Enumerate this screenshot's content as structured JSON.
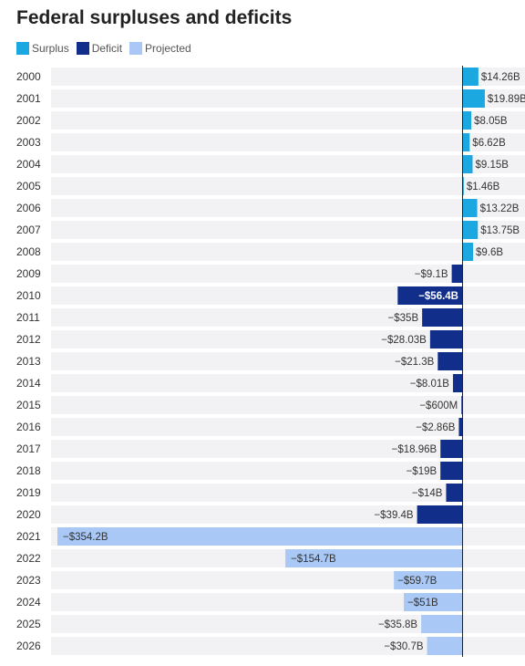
{
  "colors": {
    "surplus": "#1ba7e0",
    "deficit": "#112f8a",
    "projected": "#a9c8f5",
    "row_bg": "#f2f2f4"
  },
  "chart_data": {
    "type": "bar",
    "orientation": "horizontal",
    "title": "Federal surpluses and deficits",
    "legend": [
      {
        "key": "surplus",
        "label": "Surplus"
      },
      {
        "key": "deficit",
        "label": "Deficit"
      },
      {
        "key": "projected",
        "label": "Projected"
      }
    ],
    "legend_position": "top-left",
    "unit": "billions of dollars",
    "bars": [
      {
        "year": "2000",
        "value": 14.26,
        "label": "$14.26B",
        "kind": "surplus"
      },
      {
        "year": "2001",
        "value": 19.89,
        "label": "$19.89B",
        "kind": "surplus"
      },
      {
        "year": "2002",
        "value": 8.05,
        "label": "$8.05B",
        "kind": "surplus"
      },
      {
        "year": "2003",
        "value": 6.62,
        "label": "$6.62B",
        "kind": "surplus"
      },
      {
        "year": "2004",
        "value": 9.15,
        "label": "$9.15B",
        "kind": "surplus"
      },
      {
        "year": "2005",
        "value": 1.46,
        "label": "$1.46B",
        "kind": "surplus"
      },
      {
        "year": "2006",
        "value": 13.22,
        "label": "$13.22B",
        "kind": "surplus"
      },
      {
        "year": "2007",
        "value": 13.75,
        "label": "$13.75B",
        "kind": "surplus"
      },
      {
        "year": "2008",
        "value": 9.6,
        "label": "$9.6B",
        "kind": "surplus"
      },
      {
        "year": "2009",
        "value": -9.1,
        "label": "−$9.1B",
        "kind": "deficit"
      },
      {
        "year": "2010",
        "value": -56.4,
        "label": "−$56.4B",
        "kind": "deficit"
      },
      {
        "year": "2011",
        "value": -35,
        "label": "−$35B",
        "kind": "deficit"
      },
      {
        "year": "2012",
        "value": -28.03,
        "label": "−$28.03B",
        "kind": "deficit"
      },
      {
        "year": "2013",
        "value": -21.3,
        "label": "−$21.3B",
        "kind": "deficit"
      },
      {
        "year": "2014",
        "value": -8.01,
        "label": "−$8.01B",
        "kind": "deficit"
      },
      {
        "year": "2015",
        "value": -0.6,
        "label": "−$600M",
        "kind": "deficit"
      },
      {
        "year": "2016",
        "value": -2.86,
        "label": "−$2.86B",
        "kind": "deficit"
      },
      {
        "year": "2017",
        "value": -18.96,
        "label": "−$18.96B",
        "kind": "deficit"
      },
      {
        "year": "2018",
        "value": -19,
        "label": "−$19B",
        "kind": "deficit"
      },
      {
        "year": "2019",
        "value": -14,
        "label": "−$14B",
        "kind": "deficit"
      },
      {
        "year": "2020",
        "value": -39.4,
        "label": "−$39.4B",
        "kind": "deficit"
      },
      {
        "year": "2021",
        "value": -354.2,
        "label": "−$354.2B",
        "kind": "projected"
      },
      {
        "year": "2022",
        "value": -154.7,
        "label": "−$154.7B",
        "kind": "projected"
      },
      {
        "year": "2023",
        "value": -59.7,
        "label": "−$59.7B",
        "kind": "projected"
      },
      {
        "year": "2024",
        "value": -51,
        "label": "−$51B",
        "kind": "projected"
      },
      {
        "year": "2025",
        "value": -35.8,
        "label": "−$35.8B",
        "kind": "projected"
      },
      {
        "year": "2026",
        "value": -30.7,
        "label": "−$30.7B",
        "kind": "projected"
      }
    ],
    "xlim": [
      -354.2,
      49.6
    ]
  }
}
